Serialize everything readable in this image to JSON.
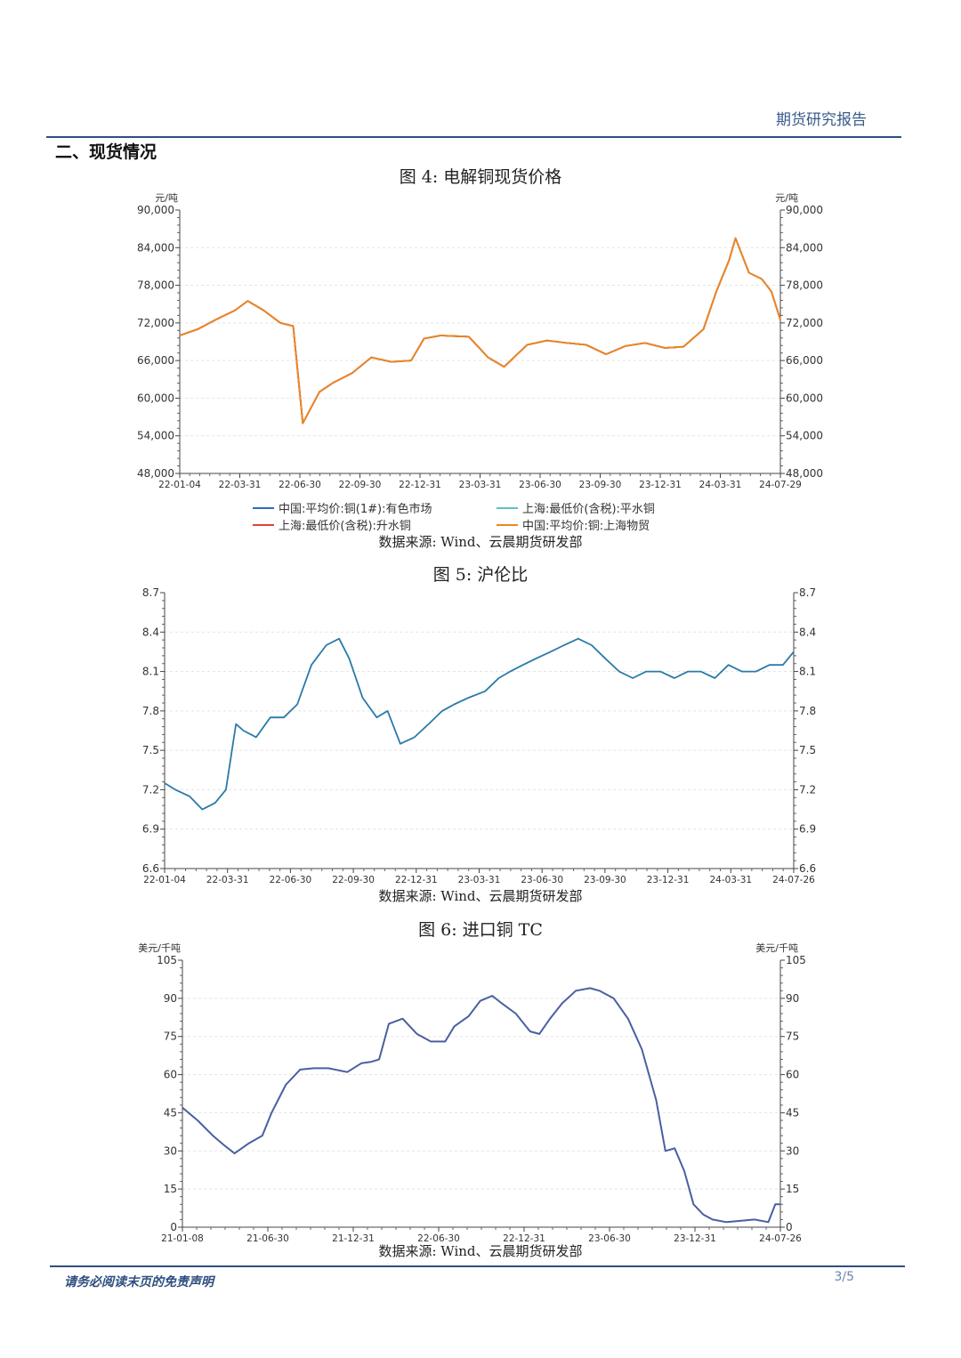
{
  "header": {
    "report_type": "期货研究报告"
  },
  "section": {
    "title": "二、现货情况"
  },
  "footer": {
    "disclaimer": "请务必阅读末页的免责声明",
    "page": "3/5"
  },
  "charts": [
    {
      "id": "fig4",
      "title": "图 4:  电解铜现货价格",
      "source": "数据来源:  Wind、云晨期货研发部",
      "unit_left": "元/吨",
      "unit_right": "元/吨",
      "yticks": [
        "90,000",
        "84,000",
        "78,000",
        "72,000",
        "66,000",
        "60,000",
        "54,000",
        "48,000"
      ],
      "xticks": [
        "22-01-04",
        "22-03-31",
        "22-06-30",
        "22-09-30",
        "22-12-31",
        "23-03-31",
        "23-06-30",
        "23-09-30",
        "23-12-31",
        "24-03-31",
        "24-07-29"
      ],
      "legend": [
        {
          "label": "中国:平均价:铜(1#):有色市场",
          "color": "#2e6fb5"
        },
        {
          "label": "上海:最低价(含税):平水铜",
          "color": "#59c5c0"
        },
        {
          "label": "上海:最低价(含税):升水铜",
          "color": "#e0403a"
        },
        {
          "label": "中国:平均价:铜:上海物贸",
          "color": "#f0861e"
        }
      ]
    },
    {
      "id": "fig5",
      "title": "图 5:  沪伦比",
      "source": "数据来源:  Wind、云晨期货研发部",
      "yticks": [
        "8.7",
        "8.4",
        "8.1",
        "7.8",
        "7.5",
        "7.2",
        "6.9",
        "6.6"
      ],
      "xticks": [
        "22-01-04",
        "22-03-31",
        "22-06-30",
        "22-09-30",
        "22-12-31",
        "23-03-31",
        "23-06-30",
        "23-09-30",
        "23-12-31",
        "24-03-31",
        "24-07-26"
      ]
    },
    {
      "id": "fig6",
      "title": "图 6:  进口铜 TC",
      "source": "数据来源:  Wind、云晨期货研发部",
      "unit_left": "美元/千吨",
      "unit_right": "美元/千吨",
      "yticks": [
        "105",
        "90",
        "75",
        "60",
        "45",
        "30",
        "15",
        "0"
      ],
      "xticks": [
        "21-01-08",
        "21-06-30",
        "21-12-31",
        "22-06-30",
        "22-12-31",
        "23-06-30",
        "23-12-31",
        "24-07-26"
      ]
    }
  ],
  "chart_data": [
    {
      "type": "line",
      "ylim": [
        48000,
        90000
      ],
      "xlim": [
        "2022-01-04",
        "2024-07-29"
      ],
      "series": [
        {
          "name": "中国:平均价:铜(1#):有色市场",
          "color": "#2e6fb5",
          "x": [
            "2022-01-04",
            "2022-02-01",
            "2022-03-01",
            "2022-03-31",
            "2022-04-20",
            "2022-05-15",
            "2022-06-10",
            "2022-06-30",
            "2022-07-15",
            "2022-08-10",
            "2022-09-01",
            "2022-09-30",
            "2022-10-30",
            "2022-11-30",
            "2022-12-31",
            "2023-01-20",
            "2023-02-15",
            "2023-03-31",
            "2023-04-30",
            "2023-05-25",
            "2023-06-30",
            "2023-07-31",
            "2023-08-31",
            "2023-09-30",
            "2023-10-31",
            "2023-11-30",
            "2023-12-31",
            "2024-01-31",
            "2024-02-29",
            "2024-03-31",
            "2024-04-20",
            "2024-05-10",
            "2024-05-20",
            "2024-06-10",
            "2024-06-30",
            "2024-07-15",
            "2024-07-29"
          ],
          "values": [
            70000,
            71000,
            72500,
            74000,
            75500,
            74000,
            72000,
            71500,
            56000,
            61000,
            62500,
            64000,
            66500,
            65800,
            66000,
            69500,
            70000,
            69800,
            66500,
            65000,
            68500,
            69200,
            68800,
            68500,
            67000,
            68300,
            68800,
            68000,
            68200,
            71000,
            77000,
            82000,
            85500,
            80000,
            79000,
            77000,
            72500
          ]
        },
        {
          "name": "上海:最低价(含税):平水铜",
          "color": "#59c5c0",
          "x": [
            "2022-01-04",
            "2022-02-01",
            "2022-03-01",
            "2022-03-31",
            "2022-04-20",
            "2022-05-15",
            "2022-06-10",
            "2022-06-30",
            "2022-07-15",
            "2022-08-10",
            "2022-09-01",
            "2022-09-30",
            "2022-10-30",
            "2022-11-30",
            "2022-12-31",
            "2023-01-20",
            "2023-02-15",
            "2023-03-31",
            "2023-04-30",
            "2023-05-25",
            "2023-06-30",
            "2023-07-31",
            "2023-08-31",
            "2023-09-30",
            "2023-10-31",
            "2023-11-30",
            "2023-12-31",
            "2024-01-31",
            "2024-02-29",
            "2024-03-31",
            "2024-04-20",
            "2024-05-10",
            "2024-05-20",
            "2024-06-10",
            "2024-06-30",
            "2024-07-15",
            "2024-07-29"
          ],
          "values": [
            70000,
            71000,
            72500,
            74000,
            75500,
            74000,
            72000,
            71500,
            56000,
            61000,
            62500,
            64000,
            66500,
            65800,
            66000,
            69500,
            70000,
            69800,
            66500,
            65000,
            68500,
            69200,
            68800,
            68500,
            67000,
            68300,
            68800,
            68000,
            68200,
            71000,
            77000,
            82000,
            85500,
            80000,
            79000,
            77000,
            72500
          ]
        },
        {
          "name": "上海:最低价(含税):升水铜",
          "color": "#e0403a",
          "x": [
            "2022-01-04",
            "2022-02-01",
            "2022-03-01",
            "2022-03-31",
            "2022-04-20",
            "2022-05-15",
            "2022-06-10",
            "2022-06-30",
            "2022-07-15",
            "2022-08-10",
            "2022-09-01",
            "2022-09-30",
            "2022-10-30",
            "2022-11-30",
            "2022-12-31",
            "2023-01-20",
            "2023-02-15",
            "2023-03-31",
            "2023-04-30",
            "2023-05-25",
            "2023-06-30",
            "2023-07-31",
            "2023-08-31",
            "2023-09-30",
            "2023-10-31",
            "2023-11-30",
            "2023-12-31",
            "2024-01-31",
            "2024-02-29",
            "2024-03-31",
            "2024-04-20",
            "2024-05-10",
            "2024-05-20",
            "2024-06-10",
            "2024-06-30",
            "2024-07-15",
            "2024-07-29"
          ],
          "values": [
            70000,
            71000,
            72500,
            74000,
            75500,
            74000,
            72000,
            71500,
            56000,
            61000,
            62500,
            64000,
            66500,
            65800,
            66000,
            69500,
            70000,
            69800,
            66500,
            65000,
            68500,
            69200,
            68800,
            68500,
            67000,
            68300,
            68800,
            68000,
            68200,
            71000,
            77000,
            82000,
            85500,
            80000,
            79000,
            77000,
            72500
          ]
        },
        {
          "name": "中国:平均价:铜:上海物贸",
          "color": "#f0861e",
          "x": [
            "2022-01-04",
            "2022-02-01",
            "2022-03-01",
            "2022-03-31",
            "2022-04-20",
            "2022-05-15",
            "2022-06-10",
            "2022-06-30",
            "2022-07-15",
            "2022-08-10",
            "2022-09-01",
            "2022-09-30",
            "2022-10-30",
            "2022-11-30",
            "2022-12-31",
            "2023-01-20",
            "2023-02-15",
            "2023-03-31",
            "2023-04-30",
            "2023-05-25",
            "2023-06-30",
            "2023-07-31",
            "2023-08-31",
            "2023-09-30",
            "2023-10-31",
            "2023-11-30",
            "2023-12-31",
            "2024-01-31",
            "2024-02-29",
            "2024-03-31",
            "2024-04-20",
            "2024-05-10",
            "2024-05-20",
            "2024-06-10",
            "2024-06-30",
            "2024-07-15",
            "2024-07-29"
          ],
          "values": [
            70000,
            71000,
            72500,
            74000,
            75500,
            74000,
            72000,
            71500,
            56000,
            61000,
            62500,
            64000,
            66500,
            65800,
            66000,
            69500,
            70000,
            69800,
            66500,
            65000,
            68500,
            69200,
            68800,
            68500,
            67000,
            68300,
            68800,
            68000,
            68200,
            71000,
            77000,
            82000,
            85500,
            80000,
            79000,
            77000,
            72500
          ]
        }
      ]
    },
    {
      "type": "line",
      "ylim": [
        6.6,
        8.7
      ],
      "xlim": [
        "2022-01-04",
        "2024-07-26"
      ],
      "series": [
        {
          "color": "#2a7aa8",
          "x": [
            "2022-01-04",
            "2022-01-20",
            "2022-02-10",
            "2022-03-01",
            "2022-03-20",
            "2022-04-05",
            "2022-04-20",
            "2022-05-01",
            "2022-05-20",
            "2022-06-10",
            "2022-06-30",
            "2022-07-20",
            "2022-08-10",
            "2022-09-01",
            "2022-09-20",
            "2022-10-05",
            "2022-10-25",
            "2022-11-15",
            "2022-12-01",
            "2022-12-20",
            "2023-01-10",
            "2023-01-31",
            "2023-02-20",
            "2023-03-10",
            "2023-03-31",
            "2023-04-25",
            "2023-05-15",
            "2023-06-01",
            "2023-06-20",
            "2023-07-10",
            "2023-07-31",
            "2023-08-20",
            "2023-09-10",
            "2023-09-30",
            "2023-10-20",
            "2023-11-10",
            "2023-11-30",
            "2023-12-20",
            "2024-01-10",
            "2024-01-31",
            "2024-02-20",
            "2024-03-10",
            "2024-03-31",
            "2024-04-20",
            "2024-05-10",
            "2024-05-31",
            "2024-06-20",
            "2024-07-10",
            "2024-07-26"
          ],
          "values": [
            7.25,
            7.2,
            7.15,
            7.05,
            7.1,
            7.2,
            7.7,
            7.65,
            7.6,
            7.75,
            7.75,
            7.85,
            8.15,
            8.3,
            8.35,
            8.2,
            7.9,
            7.75,
            7.8,
            7.55,
            7.6,
            7.7,
            7.8,
            7.85,
            7.9,
            7.95,
            8.05,
            8.1,
            8.15,
            8.2,
            8.25,
            8.3,
            8.35,
            8.3,
            8.2,
            8.1,
            8.05,
            8.1,
            8.1,
            8.05,
            8.1,
            8.1,
            8.05,
            8.15,
            8.1,
            8.1,
            8.15,
            8.15,
            8.25
          ]
        }
      ]
    },
    {
      "type": "line",
      "ylim": [
        0,
        105
      ],
      "xlim": [
        "2021-01-08",
        "2024-07-26"
      ],
      "series": [
        {
          "color": "#4a5fa0",
          "x": [
            "2021-01-08",
            "2021-02-10",
            "2021-03-15",
            "2021-04-10",
            "2021-05-01",
            "2021-06-01",
            "2021-06-30",
            "2021-07-20",
            "2021-08-20",
            "2021-09-20",
            "2021-10-20",
            "2021-11-20",
            "2021-12-31",
            "2022-01-31",
            "2022-02-20",
            "2022-03-10",
            "2022-03-31",
            "2022-04-30",
            "2022-05-31",
            "2022-06-30",
            "2022-07-31",
            "2022-08-20",
            "2022-09-20",
            "2022-10-15",
            "2022-11-10",
            "2022-12-01",
            "2022-12-31",
            "2023-01-31",
            "2023-02-20",
            "2023-03-15",
            "2023-04-10",
            "2023-05-10",
            "2023-06-10",
            "2023-06-30",
            "2023-07-31",
            "2023-08-31",
            "2023-09-30",
            "2023-10-31",
            "2023-11-20",
            "2023-12-10",
            "2023-12-31",
            "2024-01-20",
            "2024-02-10",
            "2024-03-01",
            "2024-03-31",
            "2024-04-30",
            "2024-05-31",
            "2024-06-30",
            "2024-07-15",
            "2024-07-26"
          ],
          "values": [
            47,
            42,
            36,
            32,
            29,
            33,
            36,
            45,
            56,
            62,
            62.5,
            62.5,
            61,
            64.5,
            65,
            66,
            80,
            82,
            76,
            73,
            73,
            79,
            83,
            89,
            91,
            88,
            84,
            77,
            76,
            82,
            88,
            93,
            94,
            93,
            90,
            82,
            70,
            50,
            30,
            31,
            22,
            9,
            5,
            3,
            2,
            2.5,
            3,
            2,
            9,
            9
          ]
        }
      ]
    }
  ]
}
